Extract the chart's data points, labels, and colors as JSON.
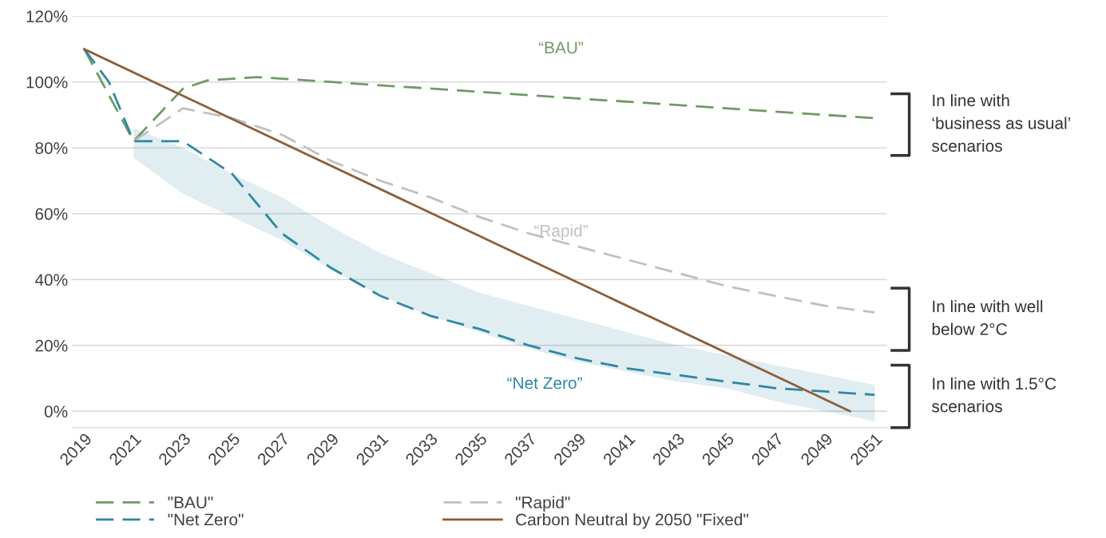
{
  "chart_data": {
    "type": "line",
    "xlim": [
      2018.5,
      2051.5
    ],
    "xticks": [
      2019,
      2021,
      2023,
      2025,
      2027,
      2029,
      2031,
      2033,
      2035,
      2037,
      2039,
      2041,
      2043,
      2045,
      2047,
      2049,
      2051
    ],
    "ylim": [
      -5,
      120
    ],
    "yticks": [
      {
        "value": 0,
        "label": "0%"
      },
      {
        "value": 20,
        "label": "20%"
      },
      {
        "value": 40,
        "label": "40%"
      },
      {
        "value": 60,
        "label": "60%"
      },
      {
        "value": 80,
        "label": "80%"
      },
      {
        "value": 100,
        "label": "100%"
      },
      {
        "value": 120,
        "label": "120%"
      }
    ],
    "grid": "y",
    "legend": "bottom",
    "marker": "none",
    "series": [
      {
        "name": "\"BAU\"",
        "color": "#6f9b63",
        "line_style": "dashed",
        "x": [
          2019,
          2021,
          2023,
          2024,
          2026,
          2029,
          2051
        ],
        "values": [
          110,
          82,
          98,
          100.5,
          101.5,
          100,
          89
        ]
      },
      {
        "name": "\"Rapid\"",
        "color": "#c0c0c0",
        "line_style": "dashed",
        "x": [
          2021,
          2023,
          2025,
          2027,
          2029,
          2031,
          2033,
          2035,
          2037,
          2039,
          2041,
          2043,
          2045,
          2047,
          2049,
          2051
        ],
        "values": [
          82,
          92,
          89,
          84,
          76,
          70,
          65,
          59,
          54,
          50,
          46,
          42,
          38,
          35,
          32,
          30
        ]
      },
      {
        "name": "\"Net Zero\"",
        "color": "#2e87a2",
        "line_style": "dashed",
        "x": [
          2019,
          2020,
          2021,
          2023,
          2025,
          2027,
          2029,
          2031,
          2033,
          2035,
          2037,
          2039,
          2041,
          2043,
          2045,
          2047,
          2049,
          2051
        ],
        "values": [
          110,
          100,
          82,
          82,
          72,
          54,
          43.5,
          35,
          29,
          25,
          20,
          16,
          13,
          11,
          9,
          7,
          6,
          5
        ],
        "lower": [
          null,
          null,
          77,
          66,
          59,
          52,
          43,
          35,
          29,
          24,
          19,
          15,
          12,
          9,
          7,
          3,
          0,
          -3
        ],
        "upper": [
          null,
          null,
          86,
          80,
          72,
          65,
          56,
          48,
          42,
          36,
          32,
          28,
          24,
          20,
          17,
          14,
          11,
          8
        ]
      },
      {
        "name": "Carbon Neutral by 2050 \"Fixed\"",
        "color": "#8c5e3b",
        "line_style": "solid",
        "x": [
          2019,
          2050
        ],
        "values": [
          110,
          0
        ]
      }
    ],
    "annotations": [
      "“BAU”",
      "“Rapid”",
      "“Net Zero”",
      "In line with\n‘business as usual’\nscenarios",
      "In line with well\nbelow 2°C",
      "In line with 1.5°C\nscenarios"
    ]
  }
}
